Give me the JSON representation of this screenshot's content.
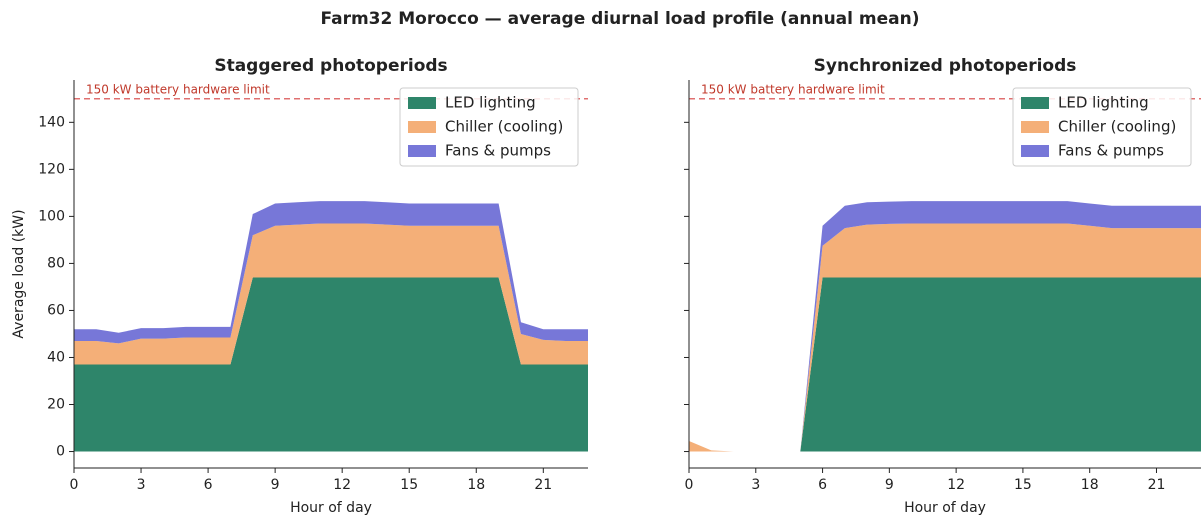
{
  "title": "Farm32 Morocco — average diurnal load profile (annual mean)",
  "chart_data": [
    {
      "type": "stacked_area",
      "title": "Staggered photoperiods",
      "xlabel": "Hour of day",
      "ylabel": "Average load (kW)",
      "x": [
        0,
        1,
        2,
        3,
        4,
        5,
        6,
        7,
        8,
        9,
        10,
        11,
        12,
        13,
        14,
        15,
        16,
        17,
        18,
        19,
        20,
        21,
        22,
        23
      ],
      "series": [
        {
          "name": "LED lighting",
          "color": "#2e856a",
          "values": [
            37,
            37,
            37,
            37,
            37,
            37,
            37,
            37,
            74,
            74,
            74,
            74,
            74,
            74,
            74,
            74,
            74,
            74,
            74,
            74,
            37,
            37,
            37,
            37
          ]
        },
        {
          "name": "Chiller (cooling)",
          "color": "#f4af78",
          "values": [
            10,
            10,
            9,
            11,
            11,
            11.5,
            11.5,
            11.5,
            18,
            22,
            22.5,
            23,
            23,
            23,
            22.5,
            22,
            22,
            22,
            22,
            22,
            13,
            10.5,
            10,
            10
          ]
        },
        {
          "name": "Fans & pumps",
          "color": "#7777d8",
          "values": [
            5,
            5,
            4.5,
            4.5,
            4.5,
            4.5,
            4.5,
            4.5,
            9,
            9.5,
            9.5,
            9.5,
            9.5,
            9.5,
            9.5,
            9.5,
            9.5,
            9.5,
            9.5,
            9.5,
            5,
            4.5,
            5,
            5
          ]
        }
      ],
      "hline": {
        "value": 150,
        "label": "150 kW battery hardware limit",
        "color": "#e07070"
      },
      "xlim": [
        0,
        23
      ],
      "xticks": [
        0,
        3,
        6,
        9,
        12,
        15,
        18,
        21
      ],
      "ylim": [
        -7,
        158
      ],
      "yticks": [
        0,
        20,
        40,
        60,
        80,
        100,
        120,
        140
      ],
      "legend": "upper right"
    },
    {
      "type": "stacked_area",
      "title": "Synchronized photoperiods",
      "xlabel": "Hour of day",
      "x": [
        0,
        1,
        2,
        3,
        4,
        5,
        6,
        7,
        8,
        9,
        10,
        11,
        12,
        13,
        14,
        15,
        16,
        17,
        18,
        19,
        20,
        21,
        22,
        23
      ],
      "series": [
        {
          "name": "LED lighting",
          "color": "#2e856a",
          "values": [
            0,
            0,
            0,
            0,
            0,
            0,
            74,
            74,
            74,
            74,
            74,
            74,
            74,
            74,
            74,
            74,
            74,
            74,
            74,
            74,
            74,
            74,
            74,
            74
          ]
        },
        {
          "name": "Chiller (cooling)",
          "color": "#f4af78",
          "values": [
            4.5,
            0.5,
            0,
            0,
            0,
            0,
            13.5,
            21,
            22.5,
            22.8,
            23,
            23,
            23,
            23,
            23,
            23,
            23,
            23,
            22,
            21,
            21,
            21,
            21,
            21
          ]
        },
        {
          "name": "Fans & pumps",
          "color": "#7777d8",
          "values": [
            0,
            0,
            0,
            0,
            0,
            0,
            8.5,
            9.5,
            9.5,
            9.5,
            9.5,
            9.5,
            9.5,
            9.5,
            9.5,
            9.5,
            9.5,
            9.5,
            9.5,
            9.5,
            9.5,
            9.5,
            9.5,
            9.5
          ]
        }
      ],
      "hline": {
        "value": 150,
        "label": "150 kW battery hardware limit",
        "color": "#e07070"
      },
      "xlim": [
        0,
        23
      ],
      "xticks": [
        0,
        3,
        6,
        9,
        12,
        15,
        18,
        21
      ],
      "ylim": [
        -7,
        158
      ],
      "yticks": [
        0,
        20,
        40,
        60,
        80,
        100,
        120,
        140
      ],
      "legend": "upper right",
      "ytick_labels": false
    }
  ]
}
